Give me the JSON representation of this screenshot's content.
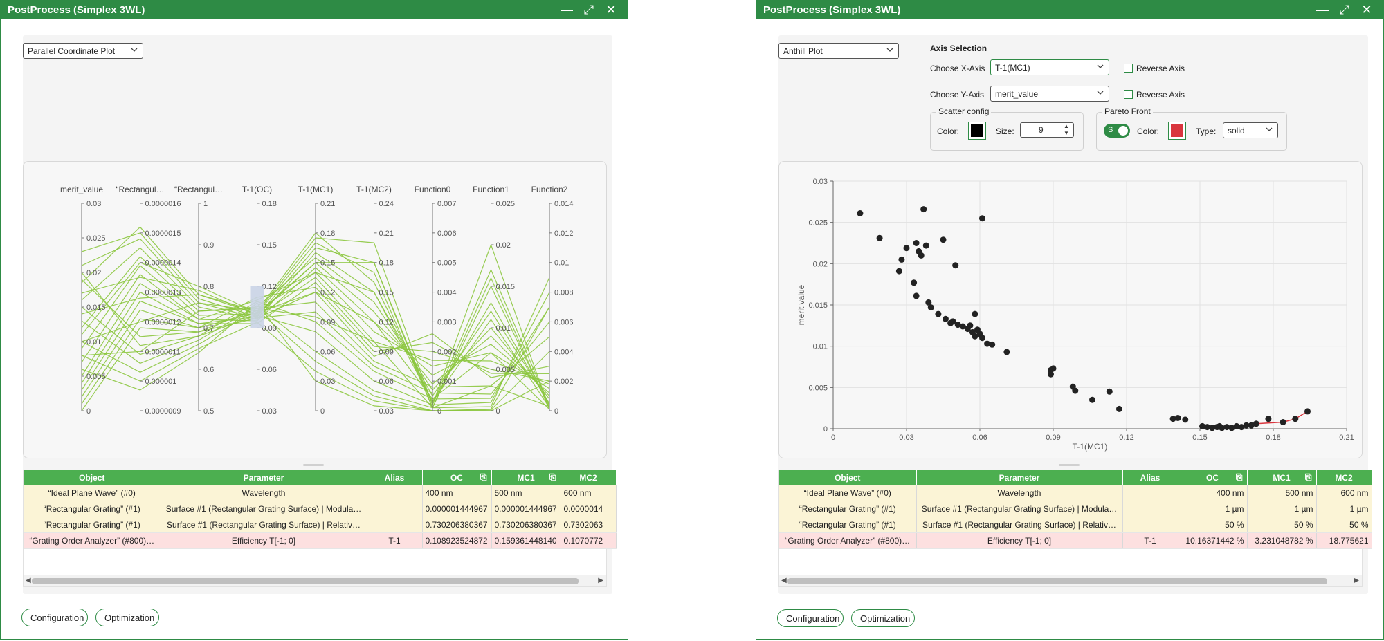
{
  "left_window": {
    "title": "PostProcess (Simplex 3WL)",
    "plot_type": "Parallel Coordinate Plot",
    "footer_buttons": [
      "Configuration",
      "Optimization"
    ],
    "table": {
      "headers": [
        "Object",
        "Parameter",
        "Alias",
        "OC",
        "MC1",
        "MC2"
      ],
      "rows": [
        [
          "“Ideal Plane Wave” (#0)",
          "Wavelength",
          "",
          "400 nm",
          "500 nm",
          "600 nm"
        ],
        [
          "“Rectangular Grating” (#1)",
          "Surface #1 (Rectangular Grating Surface) | Modula…",
          "",
          "0.000001444967",
          "0.000001444967",
          "0.0000014"
        ],
        [
          "“Rectangular Grating” (#1)",
          "Surface #1 (Rectangular Grating Surface) | Relativ…",
          "",
          "0.730206380367",
          "0.730206380367",
          "0.7302063"
        ],
        [
          "“Grating Order Analyzer” (#800)…",
          "Efficiency T[-1; 0]",
          "T-1",
          "0.108923524872",
          "0.159361448140",
          "0.1070772"
        ]
      ]
    },
    "chart_data": {
      "type": "parallel-coordinates",
      "color": "#8cc63f",
      "axes": [
        {
          "name": "merit_value",
          "ticks": [
            "0.03",
            "0.025",
            "0.02",
            "0.015",
            "0.01",
            "0.005",
            "0"
          ],
          "range": [
            0,
            0.03
          ]
        },
        {
          "name": "“Rectangul…",
          "ticks": [
            "0.0000016",
            "0.0000015",
            "0.0000014",
            "0.0000013",
            "0.0000012",
            "0.0000011",
            "0.000001",
            "0.0000009"
          ],
          "range": [
            9e-07,
            1.6e-06
          ]
        },
        {
          "name": "“Rectangul…",
          "ticks": [
            "1",
            "0.9",
            "0.8",
            "0.7",
            "0.6",
            "0.5"
          ],
          "range": [
            0.5,
            1
          ]
        },
        {
          "name": "T-1(OC)",
          "ticks": [
            "0.18",
            "0.15",
            "0.12",
            "0.09",
            "0.06",
            "0.03"
          ],
          "range": [
            0.03,
            0.18
          ],
          "brush": [
            0.09,
            0.12
          ]
        },
        {
          "name": "T-1(MC1)",
          "ticks": [
            "0.21",
            "0.18",
            "0.15",
            "0.12",
            "0.09",
            "0.06",
            "0.03",
            "0"
          ],
          "range": [
            0,
            0.21
          ]
        },
        {
          "name": "T-1(MC2)",
          "ticks": [
            "0.24",
            "0.21",
            "0.18",
            "0.15",
            "0.12",
            "0.09",
            "0.06",
            "0.03"
          ],
          "range": [
            0.03,
            0.24
          ]
        },
        {
          "name": "Function0",
          "ticks": [
            "0.007",
            "0.006",
            "0.005",
            "0.004",
            "0.003",
            "0.002",
            "0.001",
            "0"
          ],
          "range": [
            0,
            0.007
          ]
        },
        {
          "name": "Function1",
          "ticks": [
            "0.025",
            "0.02",
            "0.015",
            "0.01",
            "0.005",
            "0"
          ],
          "range": [
            0,
            0.025
          ]
        },
        {
          "name": "Function2",
          "ticks": [
            "0.014",
            "0.012",
            "0.01",
            "0.008",
            "0.006",
            "0.004",
            "0.002",
            "0"
          ],
          "range": [
            0,
            0.014
          ]
        }
      ],
      "lines": [
        [
          0.0185,
          1.52e-06,
          0.78,
          0.1,
          0.17,
          0.17,
          0.0001,
          0.015,
          0.0002
        ],
        [
          0.023,
          1.5e-06,
          0.77,
          0.098,
          0.165,
          0.18,
          0.0002,
          0.017,
          0.0003
        ],
        [
          0.021,
          1.48e-06,
          0.76,
          0.102,
          0.18,
          0.16,
          0.0003,
          0.013,
          0.0004
        ],
        [
          0.016,
          1.45e-06,
          0.75,
          0.096,
          0.16,
          0.15,
          0.0005,
          0.012,
          0.0005
        ],
        [
          0.012,
          1.42e-06,
          0.74,
          0.105,
          0.155,
          0.14,
          0.0007,
          0.01,
          0.0008
        ],
        [
          0.009,
          1.39e-06,
          0.73,
          0.1,
          0.15,
          0.13,
          0.0009,
          0.009,
          0.001
        ],
        [
          0.007,
          1.36e-06,
          0.72,
          0.095,
          0.145,
          0.12,
          0.0012,
          0.008,
          0.0012
        ],
        [
          0.005,
          1.33e-06,
          0.72,
          0.11,
          0.14,
          0.11,
          0.0015,
          0.007,
          0.0015
        ],
        [
          0.004,
          1.3e-06,
          0.71,
          0.098,
          0.135,
          0.1,
          0.0017,
          0.006,
          0.0018
        ],
        [
          0.003,
          1.27e-06,
          0.71,
          0.093,
          0.13,
          0.095,
          0.002,
          0.005,
          0.002
        ],
        [
          0.002,
          1.24e-06,
          0.7,
          0.112,
          0.125,
          0.09,
          0.0023,
          0.0045,
          0.0025
        ],
        [
          0.001,
          1.21e-06,
          0.7,
          0.101,
          0.12,
          0.085,
          0.0026,
          0.004,
          0.003
        ],
        [
          0.0,
          1.18e-06,
          0.69,
          0.104,
          0.11,
          0.08,
          0.0008,
          0.003,
          0.005
        ],
        [
          0.019,
          1.15e-06,
          0.69,
          0.097,
          0.1,
          0.075,
          0.0006,
          0.002,
          0.006
        ],
        [
          0.02,
          1.12e-06,
          0.68,
          0.109,
          0.09,
          0.07,
          0.0004,
          0.0015,
          0.007
        ],
        [
          0.015,
          1.09e-06,
          0.68,
          0.099,
          0.08,
          0.06,
          0.0002,
          0.001,
          0.008
        ],
        [
          0.013,
          1.06e-06,
          0.67,
          0.106,
          0.06,
          0.05,
          0.0001,
          0.0005,
          0.009
        ],
        [
          0.01,
          1.03e-06,
          0.66,
          0.103,
          0.05,
          0.045,
          0.0,
          0.0002,
          0.007
        ],
        [
          0.008,
          1e-06,
          0.65,
          0.094,
          0.04,
          0.04,
          0.0,
          0.0001,
          0.004
        ],
        [
          0.006,
          9.7e-07,
          0.64,
          0.108,
          0.03,
          0.035,
          0.0,
          0.0,
          0.002
        ],
        [
          0.011,
          1.4e-06,
          0.8,
          0.101,
          0.175,
          0.2,
          0.0002,
          0.02,
          0.0001
        ],
        [
          0.017,
          1.35e-06,
          0.79,
          0.099,
          0.15,
          0.18,
          0.0001,
          0.016,
          0.0001
        ],
        [
          0.014,
          1.28e-06,
          0.78,
          0.102,
          0.14,
          0.15,
          0.0003,
          0.011,
          0.0002
        ],
        [
          0.01,
          1.2e-06,
          0.76,
          0.097,
          0.12,
          0.12,
          0.0004,
          0.007,
          0.0001
        ],
        [
          0.008,
          1.1e-06,
          0.74,
          0.104,
          0.095,
          0.1,
          0.0001,
          0.003,
          0.0003
        ]
      ]
    }
  },
  "right_window": {
    "title": "PostProcess (Simplex 3WL)",
    "plot_type": "Anthill Plot",
    "axis_selection_label": "Axis Selection",
    "x_axis": {
      "label": "Choose X-Axis",
      "value": "T-1(MC1)",
      "reverse_label": "Reverse Axis"
    },
    "y_axis": {
      "label": "Choose Y-Axis",
      "value": "merit_value",
      "reverse_label": "Reverse Axis"
    },
    "scatter_config": {
      "legend": "Scatter config",
      "color_label": "Color:",
      "color": "#000000",
      "size_label": "Size:",
      "size": "9"
    },
    "pareto": {
      "legend": "Pareto Front",
      "toggle_text": "S",
      "color_label": "Color:",
      "color": "#d9363e",
      "type_label": "Type:",
      "type": "solid"
    },
    "footer_buttons": [
      "Configuration",
      "Optimization"
    ],
    "table": {
      "headers": [
        "Object",
        "Parameter",
        "Alias",
        "OC",
        "MC1",
        "MC2"
      ],
      "rows": [
        [
          "“Ideal Plane Wave” (#0)",
          "Wavelength",
          "",
          "400 nm",
          "500 nm",
          "600 nm"
        ],
        [
          "“Rectangular Grating” (#1)",
          "Surface #1 (Rectangular Grating Surface) | Modula…",
          "",
          "1 µm",
          "1 µm",
          "1 µm"
        ],
        [
          "“Rectangular Grating” (#1)",
          "Surface #1 (Rectangular Grating Surface) | Relativ…",
          "",
          "50 %",
          "50 %",
          "50 %"
        ],
        [
          "“Grating Order Analyzer” (#800)…",
          "Efficiency T[-1; 0]",
          "T-1",
          "10.16371442 %",
          "3.231048782 %",
          "18.775621"
        ]
      ]
    },
    "chart_data": {
      "type": "scatter",
      "xlabel": "T-1(MC1)",
      "ylabel": "merit value",
      "xlim": [
        0,
        0.21
      ],
      "ylim": [
        0,
        0.03
      ],
      "xticks": [
        "0",
        "0.03",
        "0.06",
        "0.09",
        "0.12",
        "0.15",
        "0.18",
        "0.21"
      ],
      "yticks": [
        "0",
        "0.005",
        "0.01",
        "0.015",
        "0.02",
        "0.025",
        "0.03"
      ],
      "grid": true,
      "point_color": "#222222",
      "pareto_color": "#d9363e",
      "points": [
        [
          0.011,
          0.0261
        ],
        [
          0.019,
          0.0231
        ],
        [
          0.037,
          0.0266
        ],
        [
          0.061,
          0.0255
        ],
        [
          0.034,
          0.0225
        ],
        [
          0.03,
          0.0219
        ],
        [
          0.038,
          0.0222
        ],
        [
          0.045,
          0.0229
        ],
        [
          0.035,
          0.0215
        ],
        [
          0.036,
          0.021
        ],
        [
          0.028,
          0.0205
        ],
        [
          0.05,
          0.0198
        ],
        [
          0.027,
          0.0191
        ],
        [
          0.033,
          0.0177
        ],
        [
          0.034,
          0.0161
        ],
        [
          0.039,
          0.0153
        ],
        [
          0.04,
          0.0147
        ],
        [
          0.043,
          0.0139
        ],
        [
          0.046,
          0.0133
        ],
        [
          0.048,
          0.0128
        ],
        [
          0.049,
          0.013
        ],
        [
          0.051,
          0.0126
        ],
        [
          0.053,
          0.0124
        ],
        [
          0.055,
          0.0121
        ],
        [
          0.056,
          0.0125
        ],
        [
          0.057,
          0.0117
        ],
        [
          0.058,
          0.0139
        ],
        [
          0.058,
          0.0112
        ],
        [
          0.059,
          0.012
        ],
        [
          0.06,
          0.0115
        ],
        [
          0.061,
          0.011
        ],
        [
          0.063,
          0.0103
        ],
        [
          0.065,
          0.0102
        ],
        [
          0.071,
          0.0093
        ],
        [
          0.089,
          0.0071
        ],
        [
          0.09,
          0.0073
        ],
        [
          0.089,
          0.0066
        ],
        [
          0.098,
          0.0051
        ],
        [
          0.099,
          0.0046
        ],
        [
          0.106,
          0.0035
        ],
        [
          0.113,
          0.0045
        ],
        [
          0.117,
          0.0024
        ],
        [
          0.139,
          0.0012
        ],
        [
          0.141,
          0.0013
        ],
        [
          0.144,
          0.0011
        ],
        [
          0.151,
          0.0003
        ],
        [
          0.153,
          0.0002
        ],
        [
          0.155,
          0.0001
        ],
        [
          0.157,
          0.0002
        ],
        [
          0.158,
          0.0003
        ],
        [
          0.159,
          0.0001
        ],
        [
          0.161,
          0.0002
        ],
        [
          0.163,
          0.0001
        ],
        [
          0.165,
          0.0003
        ],
        [
          0.167,
          0.0002
        ],
        [
          0.169,
          0.0004
        ],
        [
          0.171,
          0.0004
        ],
        [
          0.173,
          0.0006
        ],
        [
          0.178,
          0.0012
        ],
        [
          0.184,
          0.0008
        ],
        [
          0.189,
          0.0012
        ],
        [
          0.194,
          0.0021
        ]
      ],
      "pareto_front": [
        [
          0.151,
          0.0003
        ],
        [
          0.155,
          0.0001
        ],
        [
          0.163,
          0.0001
        ],
        [
          0.169,
          0.0004
        ],
        [
          0.173,
          0.0006
        ],
        [
          0.184,
          0.0008
        ],
        [
          0.189,
          0.0012
        ],
        [
          0.194,
          0.0021
        ]
      ]
    }
  },
  "icons": {
    "minimize": "minimize-icon",
    "maximize": "maximize-icon",
    "close": "close-icon"
  },
  "colors": {
    "accent": "#2e8b45",
    "header": "#4caf50",
    "row_param": "#fbf4d6",
    "row_result": "#fde0e0"
  }
}
